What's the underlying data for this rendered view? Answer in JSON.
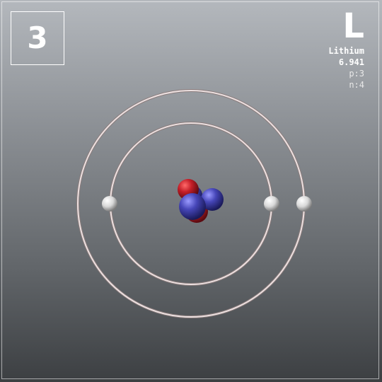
{
  "element": {
    "atomic_number": "3",
    "symbol": "L",
    "name": "Lithium",
    "atomic_mass": "6.941",
    "protons": "p:3",
    "neutrons": "n:4"
  },
  "atom_model": {
    "shells": [
      {
        "electrons": 2
      },
      {
        "electrons": 1
      }
    ],
    "nucleus": {
      "protons": 3,
      "neutrons": 4
    },
    "colors": {
      "proton": "#c0202a",
      "neutron": "#4a4ab8",
      "electron": "#f0f0f0",
      "orbit": "#e8d8d8"
    }
  }
}
